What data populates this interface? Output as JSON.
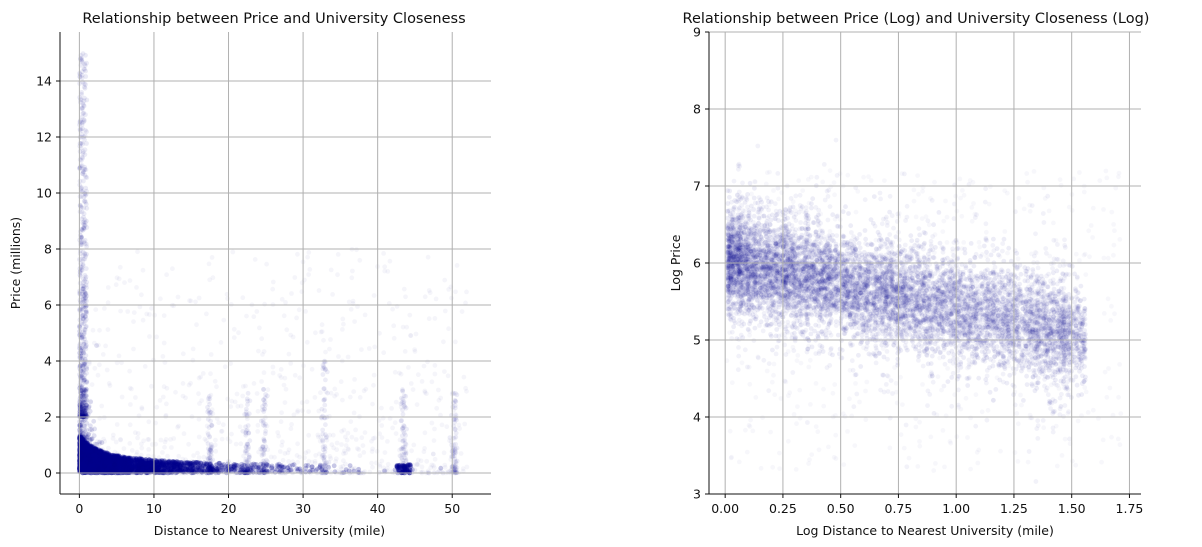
{
  "chart_data": [
    {
      "type": "scatter",
      "title": "Relationship between Price and University Closeness",
      "xlabel": "Distance to Nearest University (mile)",
      "ylabel": "Price (millions)",
      "xlim": [
        -2.6,
        55.2
      ],
      "ylim": [
        -0.75,
        15.75
      ],
      "xticks": [
        0,
        10,
        20,
        30,
        40,
        50
      ],
      "yticks": [
        0,
        2,
        4,
        6,
        8,
        10,
        12,
        14
      ],
      "grid": true,
      "color": "#00008b",
      "marker_alpha": 0.05,
      "points_summary": "dense cluster near x 0–30, y 0–2; long tail up to y≈15 near x≈0; sparse points to x≈52"
    },
    {
      "type": "scatter",
      "title": "Relationship between Price (Log) and University Closeness (Log)",
      "xlabel": "Log Distance to Nearest University (mile)",
      "ylabel": "Log Price",
      "xlim": [
        -0.07,
        1.8
      ],
      "ylim": [
        3,
        9
      ],
      "xticks": [
        0.0,
        0.25,
        0.5,
        0.75,
        1.0,
        1.25,
        1.5,
        1.75
      ],
      "xtick_labels": [
        "0.00",
        "0.25",
        "0.50",
        "0.75",
        "1.00",
        "1.25",
        "1.50",
        "1.75"
      ],
      "yticks": [
        3,
        4,
        5,
        6,
        7,
        8,
        9
      ],
      "grid": true,
      "color": "#00008b",
      "marker_alpha": 0.05,
      "points_summary": "band from log price ≈6 at x≈0 declining to ≈5.2 at x≈1.4; spread roughly 4–7.2"
    }
  ]
}
